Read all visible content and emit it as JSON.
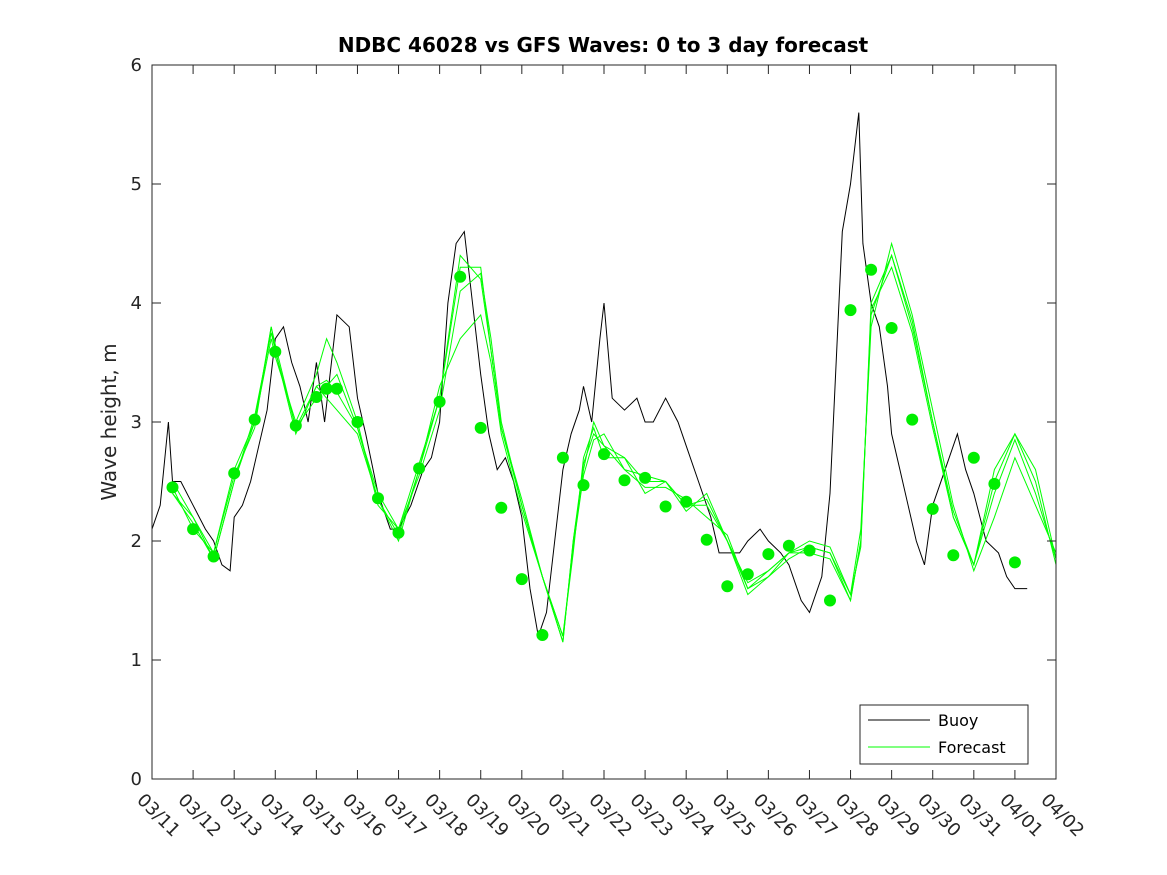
{
  "chart_data": {
    "type": "line",
    "title": "NDBC 46028 vs GFS Waves: 0 to 3 day forecast",
    "xlabel": "",
    "ylabel": "Wave height, m",
    "xlim": [
      0,
      22
    ],
    "ylim": [
      0,
      6
    ],
    "yticks": [
      0,
      1,
      2,
      3,
      4,
      5,
      6
    ],
    "xtick_labels": [
      "03/11",
      "03/12",
      "03/13",
      "03/14",
      "03/15",
      "03/16",
      "03/17",
      "03/18",
      "03/19",
      "03/20",
      "03/21",
      "03/22",
      "03/23",
      "03/24",
      "03/25",
      "03/26",
      "03/27",
      "03/28",
      "03/29",
      "03/30",
      "03/31",
      "04/01",
      "04/02"
    ],
    "legend": {
      "position": "bottom-right",
      "entries": [
        "Buoy",
        "Forecast"
      ]
    },
    "colors": {
      "buoy": "#000000",
      "forecast": "#00ff00",
      "markers": "#00ee00"
    },
    "series": [
      {
        "name": "Buoy",
        "x": [
          0.0,
          0.2,
          0.4,
          0.5,
          0.7,
          1.0,
          1.3,
          1.5,
          1.7,
          1.9,
          2.0,
          2.2,
          2.4,
          2.6,
          2.8,
          3.0,
          3.2,
          3.4,
          3.6,
          3.8,
          4.0,
          4.2,
          4.5,
          4.8,
          5.0,
          5.2,
          5.5,
          5.8,
          6.0,
          6.3,
          6.6,
          6.8,
          7.0,
          7.2,
          7.4,
          7.6,
          7.8,
          8.0,
          8.2,
          8.4,
          8.6,
          8.8,
          9.0,
          9.2,
          9.4,
          9.6,
          9.8,
          10.0,
          10.2,
          10.4,
          10.5,
          10.7,
          10.9,
          11.0,
          11.2,
          11.5,
          11.8,
          12.0,
          12.2,
          12.5,
          12.8,
          13.0,
          13.3,
          13.6,
          13.8,
          14.0,
          14.3,
          14.5,
          14.8,
          15.0,
          15.3,
          15.5,
          15.8,
          16.0,
          16.3,
          16.5,
          16.8,
          17.0,
          17.2,
          17.3,
          17.5,
          17.7,
          17.9,
          18.0,
          18.2,
          18.4,
          18.6,
          18.8,
          19.0,
          19.3,
          19.6,
          19.8,
          20.0,
          20.3,
          20.6,
          20.8,
          21.0,
          21.2,
          21.3
        ],
        "y": [
          2.1,
          2.3,
          3.0,
          2.5,
          2.5,
          2.3,
          2.1,
          2.0,
          1.8,
          1.75,
          2.2,
          2.3,
          2.5,
          2.8,
          3.1,
          3.7,
          3.8,
          3.5,
          3.3,
          3.0,
          3.5,
          3.0,
          3.9,
          3.8,
          3.2,
          2.9,
          2.4,
          2.1,
          2.1,
          2.3,
          2.6,
          2.7,
          3.0,
          4.0,
          4.5,
          4.6,
          4.0,
          3.4,
          2.9,
          2.6,
          2.7,
          2.5,
          2.2,
          1.6,
          1.2,
          1.4,
          2.0,
          2.6,
          2.9,
          3.1,
          3.3,
          3.0,
          3.7,
          4.0,
          3.2,
          3.1,
          3.2,
          3.0,
          3.0,
          3.2,
          3.0,
          2.8,
          2.5,
          2.2,
          1.9,
          1.9,
          1.9,
          2.0,
          2.1,
          2.0,
          1.9,
          1.8,
          1.5,
          1.4,
          1.7,
          2.4,
          4.6,
          5.0,
          5.6,
          4.5,
          4.0,
          3.8,
          3.3,
          2.9,
          2.6,
          2.3,
          2.0,
          1.8,
          2.3,
          2.6,
          2.9,
          2.6,
          2.4,
          2.0,
          1.9,
          1.7,
          1.6,
          1.6,
          1.6
        ]
      },
      {
        "name": "Forecast",
        "x": [
          0.5,
          1.0,
          1.5,
          2.0,
          2.5,
          2.9,
          3.0,
          3.5,
          4.0,
          4.25,
          4.5,
          5.0,
          5.5,
          6.0,
          6.5,
          7.0,
          7.5,
          8.0,
          8.25,
          8.5,
          9.0,
          9.5,
          10.0,
          10.25,
          10.5,
          10.75,
          11.0,
          11.5,
          12.0,
          12.5,
          13.0,
          13.5,
          14.0,
          14.5,
          15.0,
          15.5,
          16.0,
          16.5,
          17.0,
          17.25,
          17.5,
          18.0,
          18.5,
          19.0,
          19.5,
          20.0,
          20.5,
          21.0,
          21.5,
          22.0
        ],
        "y": [
          2.4,
          2.2,
          1.85,
          2.5,
          3.0,
          3.8,
          3.6,
          2.9,
          3.3,
          3.35,
          3.25,
          2.95,
          2.35,
          2.05,
          2.6,
          3.2,
          4.4,
          4.2,
          3.6,
          2.95,
          2.3,
          1.7,
          1.15,
          2.0,
          2.6,
          3.0,
          2.8,
          2.7,
          2.5,
          2.5,
          2.3,
          2.3,
          2.0,
          1.6,
          1.75,
          1.9,
          1.95,
          1.9,
          1.5,
          2.0,
          3.9,
          4.4,
          3.8,
          3.0,
          2.2,
          1.8,
          2.5,
          2.9,
          2.6,
          1.85
        ]
      },
      {
        "name": "Forecast",
        "x": [
          0.5,
          1.0,
          1.5,
          2.0,
          2.5,
          2.9,
          3.0,
          3.5,
          4.0,
          4.25,
          4.5,
          5.0,
          5.5,
          6.0,
          6.5,
          7.0,
          7.5,
          8.0,
          8.25,
          8.5,
          9.0,
          9.5,
          10.0,
          10.25,
          10.5,
          10.75,
          11.0,
          11.5,
          12.0,
          12.5,
          13.0,
          13.5,
          14.0,
          14.5,
          15.0,
          15.5,
          16.0,
          16.5,
          17.0,
          17.25,
          17.5,
          18.0,
          18.5,
          19.0,
          19.5,
          20.0,
          20.5,
          21.0,
          21.5,
          22.0
        ],
        "y": [
          2.45,
          2.1,
          1.9,
          2.6,
          3.0,
          3.7,
          3.55,
          3.0,
          3.4,
          3.7,
          3.5,
          3.0,
          2.3,
          2.1,
          2.55,
          3.1,
          4.1,
          4.25,
          3.7,
          3.0,
          2.3,
          1.7,
          1.2,
          1.9,
          2.7,
          2.95,
          2.7,
          2.7,
          2.4,
          2.5,
          2.25,
          2.4,
          2.0,
          1.55,
          1.7,
          1.85,
          1.95,
          1.9,
          1.55,
          2.1,
          3.8,
          4.5,
          3.9,
          3.1,
          2.3,
          1.75,
          2.2,
          2.7,
          2.3,
          1.9
        ]
      },
      {
        "name": "Forecast",
        "x": [
          0.5,
          1.0,
          1.5,
          2.0,
          2.5,
          2.9,
          3.0,
          3.5,
          4.0,
          4.25,
          4.5,
          5.0,
          5.5,
          6.0,
          6.5,
          7.0,
          7.5,
          8.0,
          8.25,
          8.5,
          9.0,
          9.5,
          10.0,
          10.25,
          10.5,
          10.75,
          11.0,
          11.5,
          12.0,
          12.5,
          13.0,
          13.5,
          14.0,
          14.5,
          15.0,
          15.5,
          16.0,
          16.5,
          17.0,
          17.25,
          17.5,
          18.0,
          18.5,
          19.0,
          19.5,
          20.0,
          20.5,
          21.0,
          21.5,
          22.0
        ],
        "y": [
          2.4,
          2.15,
          1.85,
          2.5,
          3.05,
          3.75,
          3.6,
          2.95,
          3.3,
          3.2,
          3.1,
          2.9,
          2.35,
          2.0,
          2.6,
          3.3,
          3.7,
          3.9,
          3.5,
          2.9,
          2.25,
          1.7,
          1.15,
          2.0,
          2.65,
          2.9,
          2.8,
          2.6,
          2.45,
          2.45,
          2.35,
          2.2,
          2.05,
          1.6,
          1.7,
          1.9,
          1.9,
          1.85,
          1.5,
          2.0,
          3.95,
          4.3,
          3.75,
          2.95,
          2.2,
          1.8,
          2.6,
          2.9,
          2.5,
          1.8
        ]
      },
      {
        "name": "Forecast",
        "x": [
          0.5,
          1.0,
          1.5,
          2.0,
          2.5,
          2.9,
          3.0,
          3.5,
          4.0,
          4.25,
          4.5,
          5.0,
          5.5,
          6.0,
          6.5,
          7.0,
          7.5,
          8.0,
          8.25,
          8.5,
          9.0,
          9.5,
          10.0,
          10.25,
          10.5,
          10.75,
          11.0,
          11.5,
          12.0,
          12.5,
          13.0,
          13.5,
          14.0,
          14.5,
          15.0,
          15.5,
          16.0,
          16.5,
          17.0,
          17.25,
          17.5,
          18.0,
          18.5,
          19.0,
          19.5,
          20.0,
          20.5,
          21.0,
          21.5,
          22.0
        ],
        "y": [
          2.5,
          2.2,
          1.9,
          2.55,
          2.95,
          3.8,
          3.65,
          2.95,
          3.2,
          3.3,
          3.4,
          2.95,
          2.4,
          2.1,
          2.65,
          3.2,
          4.3,
          4.3,
          3.6,
          2.95,
          2.35,
          1.7,
          1.2,
          1.95,
          2.55,
          2.85,
          2.9,
          2.6,
          2.55,
          2.5,
          2.3,
          2.35,
          2.0,
          1.65,
          1.75,
          1.9,
          2.0,
          1.95,
          1.55,
          1.95,
          4.0,
          4.4,
          3.85,
          3.0,
          2.25,
          1.8,
          2.4,
          2.85,
          2.4,
          1.85
        ]
      }
    ],
    "forecast_markers": {
      "x": [
        0.5,
        1.0,
        1.5,
        2.0,
        2.5,
        3.0,
        3.5,
        4.0,
        4.25,
        4.5,
        5.0,
        5.5,
        6.0,
        6.5,
        7.0,
        7.5,
        8.0,
        8.5,
        9.0,
        9.5,
        10.0,
        10.5,
        11.0,
        11.5,
        12.0,
        12.5,
        13.0,
        13.5,
        14.0,
        14.5,
        15.0,
        15.5,
        16.0,
        16.5,
        17.0,
        17.5,
        18.0,
        18.5,
        19.0,
        19.5,
        20.0,
        20.5,
        21.0
      ],
      "y": [
        2.45,
        2.1,
        1.87,
        2.57,
        3.02,
        3.59,
        2.97,
        3.21,
        3.28,
        3.28,
        3.0,
        2.36,
        2.07,
        2.61,
        3.17,
        4.22,
        2.95,
        2.28,
        1.68,
        1.21,
        2.7,
        2.47,
        2.73,
        2.51,
        2.53,
        2.29,
        2.33,
        2.01,
        1.62,
        1.72,
        1.89,
        1.96,
        1.92,
        1.5,
        3.94,
        4.28,
        3.79,
        3.02,
        2.27,
        1.88,
        2.7,
        2.48,
        1.82
      ]
    }
  }
}
